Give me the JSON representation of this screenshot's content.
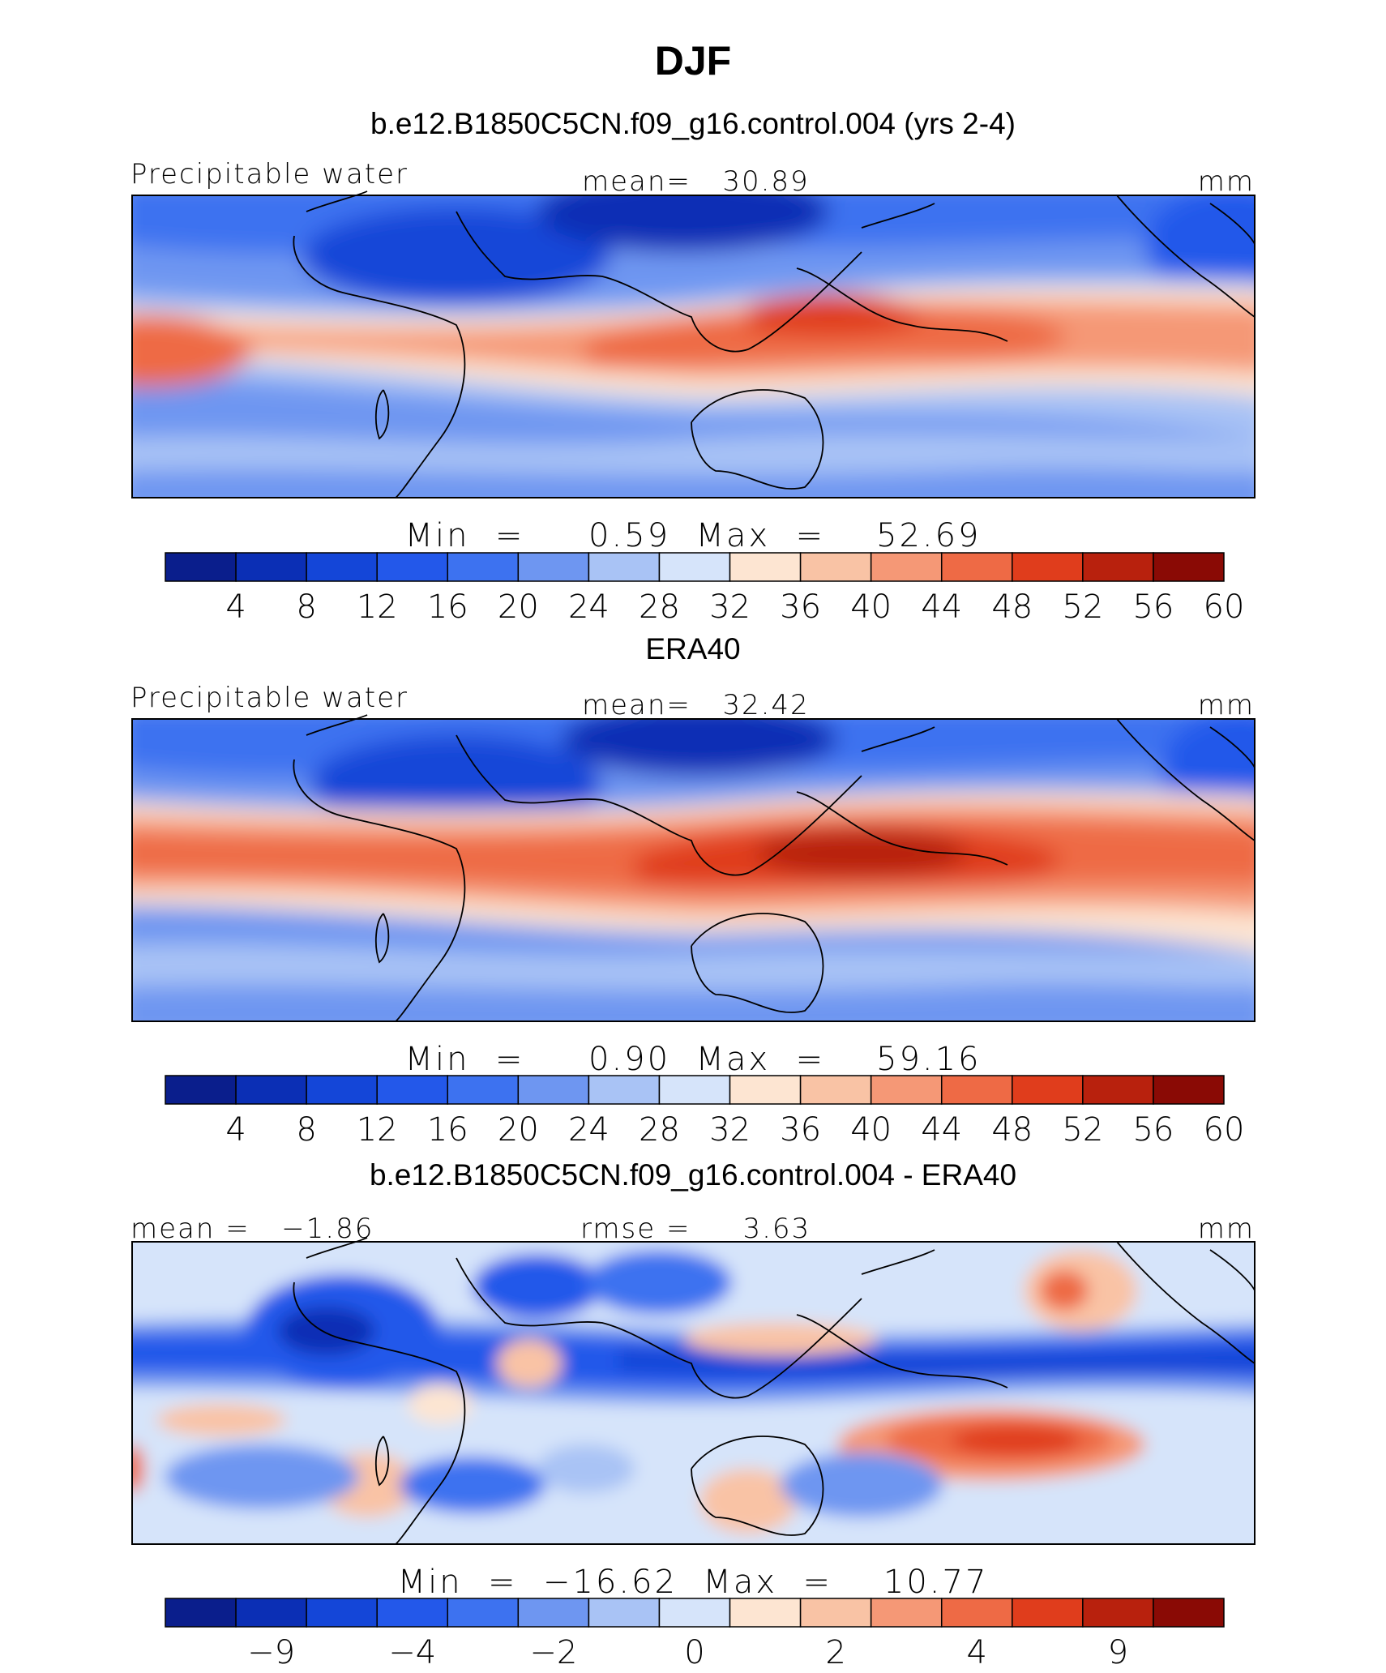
{
  "figure": {
    "main_title": "DJF"
  },
  "chart_data": [
    {
      "type": "heatmap",
      "title": "b.e12.B1850C5CN.f09_g16.control.004 (yrs 2-4)",
      "left_label": "Precipitable water",
      "center_label": "mean=   30.89",
      "units": "mm",
      "stats_label": "Min  =     0.59  Max  =    52.69",
      "mean": 30.89,
      "min": 0.59,
      "max": 52.69,
      "colorbar": {
        "ticks": [
          "4",
          "8",
          "12",
          "16",
          "20",
          "24",
          "28",
          "32",
          "36",
          "40",
          "44",
          "48",
          "52",
          "56",
          "60"
        ]
      }
    },
    {
      "type": "heatmap",
      "title": "ERA40",
      "left_label": "Precipitable water",
      "center_label": "mean=   32.42",
      "units": "mm",
      "stats_label": "Min  =     0.90  Max  =    59.16",
      "mean": 32.42,
      "min": 0.9,
      "max": 59.16,
      "colorbar": {
        "ticks": [
          "4",
          "8",
          "12",
          "16",
          "20",
          "24",
          "28",
          "32",
          "36",
          "40",
          "44",
          "48",
          "52",
          "56",
          "60"
        ]
      }
    },
    {
      "type": "heatmap",
      "title": "b.e12.B1850C5CN.f09_g16.control.004 - ERA40",
      "left_label": "mean =   −1.86",
      "center_label": "rmse =     3.63",
      "units": "mm",
      "stats_label": "Min  =  −16.62  Max  =    10.77",
      "mean": -1.86,
      "rmse": 3.63,
      "min": -16.62,
      "max": 10.77,
      "colorbar": {
        "ticks": [
          "",
          "−9",
          "",
          "−4",
          "",
          "−2",
          "",
          "0",
          "",
          "2",
          "",
          "4",
          "",
          "9",
          ""
        ]
      }
    }
  ],
  "colors": {
    "palette": [
      "#0a1e8c",
      "#0b2fb5",
      "#1446d8",
      "#2358ea",
      "#3d72f0",
      "#6e96f1",
      "#a9c3f5",
      "#d6e4fa",
      "#fde5d2",
      "#f9c3a5",
      "#f59876",
      "#ee6a45",
      "#e03d1c",
      "#b8210d",
      "#8a0a05"
    ]
  }
}
